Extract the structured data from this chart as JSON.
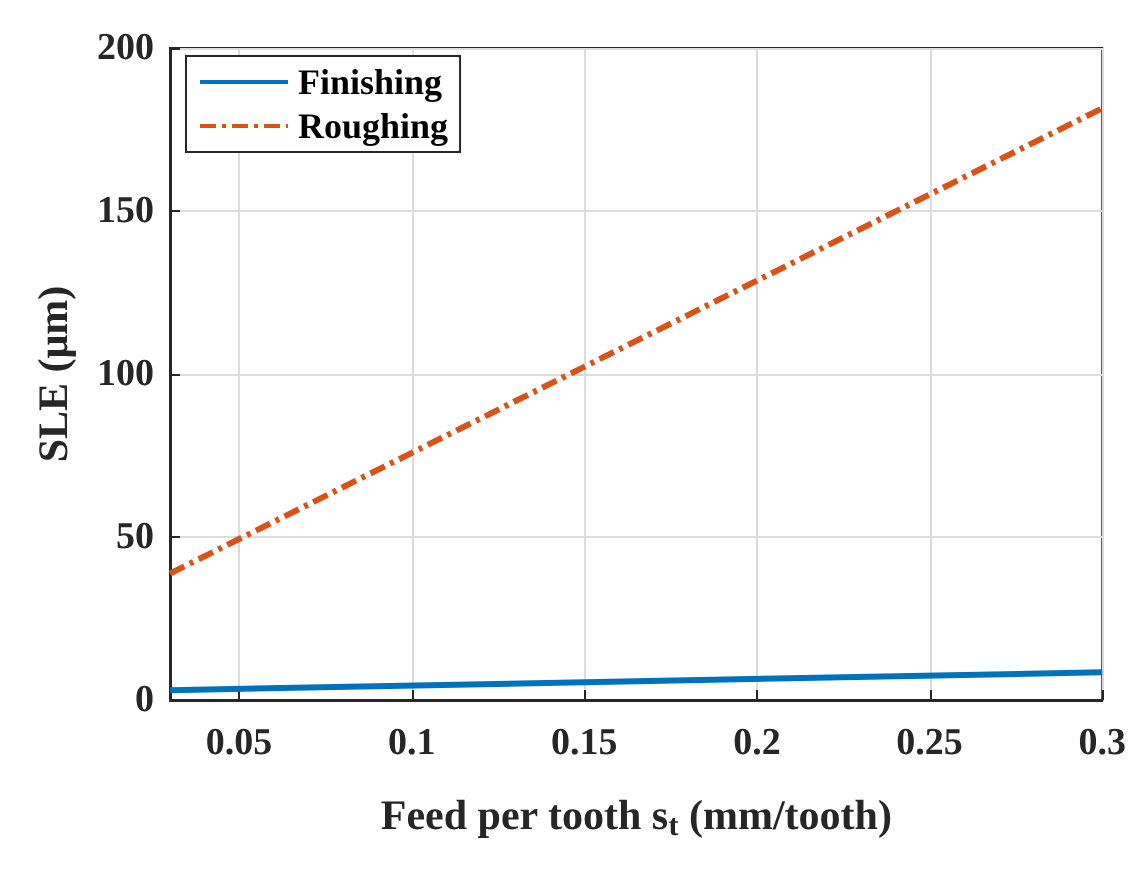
{
  "chart_data": {
    "type": "line",
    "xlabel": "Feed per tooth s$_{t}$ (mm/tooth)",
    "ylabel": "SLE (μm)",
    "xlim": [
      0.03,
      0.3
    ],
    "xticks": [
      0.05,
      0.1,
      0.15,
      0.2,
      0.25,
      0.3
    ],
    "ylim": [
      0,
      200
    ],
    "yticks": [
      0,
      50,
      100,
      150,
      200
    ],
    "grid": true,
    "legend": "top left",
    "x": [
      0.03,
      0.3
    ],
    "series": [
      {
        "name": "Finishing",
        "color": "#0072bd",
        "line_style": "solid",
        "values": [
          3,
          8.5
        ]
      },
      {
        "name": "Roughing",
        "color": "#d95319",
        "line_style": "dashed",
        "values": [
          38.8,
          181.5
        ]
      }
    ]
  }
}
